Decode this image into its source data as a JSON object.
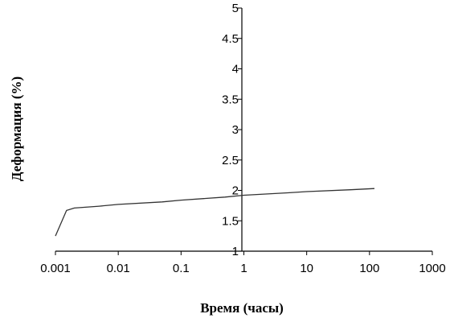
{
  "chart_data": {
    "type": "line",
    "title": "",
    "xlabel": "Время (часы)",
    "ylabel": "Деформация (%)",
    "xscale": "log",
    "xlim": [
      0.001,
      1000
    ],
    "ylim": [
      1,
      5
    ],
    "x_ticks": [
      "0.001",
      "0.01",
      "0.1",
      "1",
      "10",
      "100",
      "1000"
    ],
    "y_ticks": [
      "1",
      "1.5",
      "2",
      "2.5",
      "3",
      "3.5",
      "4",
      "4.5",
      "5"
    ],
    "grid": false,
    "line_color": "#333333",
    "series": [
      {
        "x": [
          0.001,
          0.0015,
          0.002,
          0.005,
          0.01,
          0.05,
          0.1,
          0.5,
          1,
          5,
          10,
          50,
          120
        ],
        "y": [
          1.25,
          1.67,
          1.71,
          1.74,
          1.77,
          1.81,
          1.84,
          1.89,
          1.92,
          1.96,
          1.98,
          2.01,
          2.03
        ]
      }
    ]
  }
}
